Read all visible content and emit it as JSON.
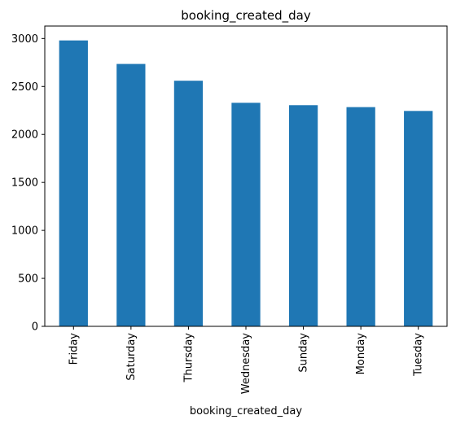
{
  "chart_data": {
    "type": "bar",
    "title": "booking_created_day",
    "xlabel": "booking_created_day",
    "ylabel": "",
    "categories": [
      "Friday",
      "Saturday",
      "Thursday",
      "Wednesday",
      "Sunday",
      "Monday",
      "Tuesday"
    ],
    "values": [
      2980,
      2735,
      2560,
      2330,
      2305,
      2285,
      2245
    ],
    "ylim": [
      0,
      3130
    ],
    "yticks": [
      0,
      500,
      1000,
      1500,
      2000,
      2500,
      3000
    ],
    "grid": false,
    "legend": "none",
    "bar_color": "#1f77b4"
  }
}
